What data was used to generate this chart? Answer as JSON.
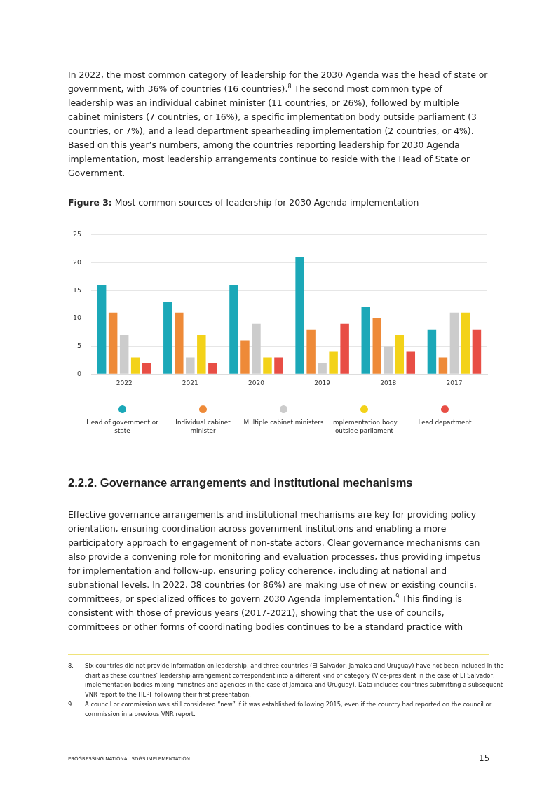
{
  "chart_data": {
    "type": "bar",
    "title": "Figure 3: Most common sources of leadership for 2030 Agenda implementation",
    "categories": [
      "2022",
      "2021",
      "2020",
      "2019",
      "2018",
      "2017"
    ],
    "series": [
      {
        "name": "Head of government or state",
        "color": "#1ba8b8",
        "values": [
          16,
          13,
          16,
          21,
          12,
          8
        ]
      },
      {
        "name": "Individual cabinet minister",
        "color": "#ee8a38",
        "values": [
          11,
          11,
          6,
          8,
          10,
          3
        ]
      },
      {
        "name": "Multiple cabinet ministers",
        "color": "#cccccc",
        "values": [
          7,
          3,
          9,
          2,
          5,
          11
        ]
      },
      {
        "name": "Implementation body outside parliament",
        "color": "#f3d219",
        "values": [
          3,
          7,
          3,
          4,
          7,
          11
        ]
      },
      {
        "name": "Lead department",
        "color": "#e84e45",
        "values": [
          2,
          2,
          3,
          9,
          4,
          8
        ]
      }
    ],
    "ylim": [
      0,
      25
    ],
    "yticks": [
      0,
      5,
      10,
      15,
      20,
      25
    ],
    "grid": "y",
    "legend": "bottom",
    "annotations": [
      "In 2022, the most common category of leadership for the 2030 Agenda was the head of state or government, with 36% of countries (16 countries).$^{8}$ The second most common type of leadership was an individual cabinet minister (11 countries, or 26%), followed by multiple cabinet ministers (7 countries, or 16%), a specific implementation body outside parliament (3 countries, or 7%), and a lead department spearheading implementation (2 countries, or 4%). Based on this year’s numbers, among the countries reporting leadership for 2030 Agenda implementation, most leadership arrangements continue to reside with the Head of State or Government.",
      "2.2.2. Governance arrangements and institutional mechanisms",
      "Effective governance arrangements and institutional mechanisms are key for providing policy orientation, ensuring coordination across government institutions and enabling a more participatory approach to engagement of non-state actors. Clear governance mechanisms can also provide a convening role for monitoring and evaluation processes, thus providing impetus for implementation and follow-up, ensuring policy coherence, including at national and subnational levels. In 2022, 38 countries (or 86%) are making use of new or existing councils, committees, or specialized offices to govern 2030 Agenda implementation.$^{9}$ This finding is consistent with those of previous years (2017-2021), showing that the use of councils, committees or other forms of coordinating bodies continues to be a standard practice with",
      "8. Six countries did not provide  information on leadership, and three countries (El Salvador, Jamaica and Uruguay) have not been included in the chart as these countries’ leadership arrangement correspondent into a different kind of category (Vice-president in the case of El Salvador, implementation bodies mixing ministries and agencies in the case of Jamaica and Uruguay). Data includes countries submitting a subsequent VNR report to the HLPF following their first presentation.",
      "9. A council or commission was still considered “new” if it was established following 2015, even if the country had reported on the council or commission in a previous VNR report.",
      "PROGRESSING NATIONAL SDGS IMPLEMENTATION",
      "15"
    ]
  }
}
